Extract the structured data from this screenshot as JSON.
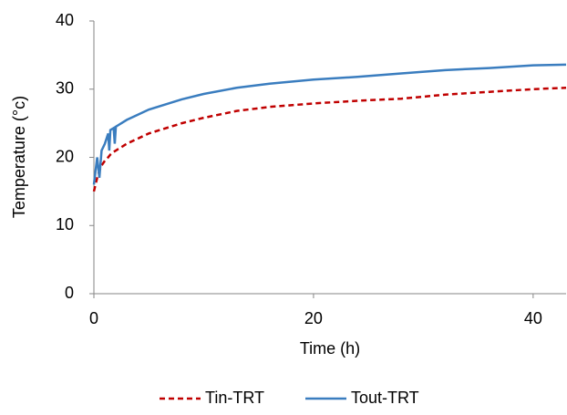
{
  "chart_data": {
    "type": "line",
    "x_label": "Time (h)",
    "y_label": "Temperature (°c)",
    "x": [
      0,
      0.3,
      0.5,
      0.7,
      1,
      1.3,
      1.4,
      1.5,
      1.8,
      1.9,
      2,
      3,
      5,
      8,
      10,
      13,
      16,
      20,
      24,
      28,
      32,
      36,
      40,
      43
    ],
    "series": [
      {
        "name": "Tin-TRT",
        "color": "#c00000",
        "linestyle": "dashed",
        "values": [
          15,
          17,
          18,
          18.8,
          19.5,
          20,
          20.2,
          20.4,
          20.8,
          20.9,
          21,
          22,
          23.5,
          25,
          25.8,
          26.8,
          27.4,
          27.9,
          28.3,
          28.6,
          29.2,
          29.6,
          30,
          30.2
        ]
      },
      {
        "name": "Tout-TRT",
        "color": "#3a7dbf",
        "linestyle": "solid",
        "values": [
          16,
          20,
          17,
          21,
          22,
          23.5,
          21,
          24,
          24.3,
          22,
          24.5,
          25.5,
          27,
          28.5,
          29.3,
          30.2,
          30.8,
          31.4,
          31.8,
          32.3,
          32.8,
          33.1,
          33.5,
          33.6
        ]
      }
    ],
    "xlim": [
      0,
      43
    ],
    "ylim": [
      0,
      40
    ],
    "xticks": [
      0,
      20,
      40
    ],
    "yticks": [
      0,
      10,
      20,
      30,
      40
    ],
    "grid": false,
    "legend": "bottom"
  }
}
